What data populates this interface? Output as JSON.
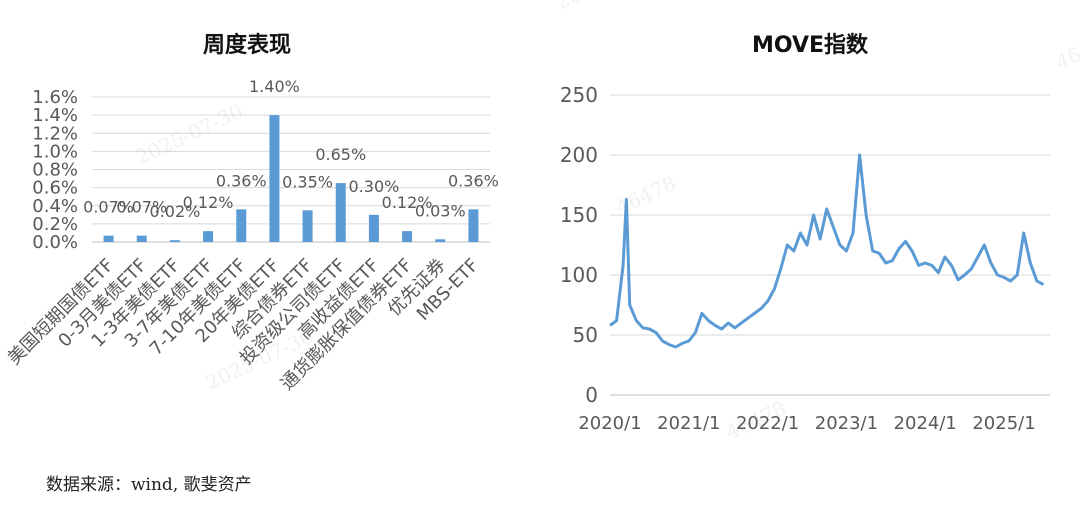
{
  "source_note": "数据来源：wind, 歌斐资产",
  "watermark": {
    "id_text": "46478",
    "date_text": "2025-07-30"
  },
  "chart_data": [
    {
      "type": "bar",
      "title": "周度表现",
      "xlabel": "",
      "ylabel": "",
      "ylim": [
        0,
        1.6
      ],
      "yticks": [
        "1.6%",
        "1.4%",
        "1.2%",
        "1.0%",
        "0.8%",
        "0.6%",
        "0.4%",
        "0.2%",
        "0.0%"
      ],
      "grid": true,
      "color": "#5B9BD5",
      "categories": [
        "美国短期国债ETF",
        "0-3月美债ETF",
        "1-3年美债ETF",
        "3-7年美债ETF",
        "7-10年美债ETF",
        "20年美债ETF",
        "综合债券ETF",
        "投资级公司债ETF",
        "高收益债ETF",
        "通货膨胀保值债券ETF",
        "优先证券",
        "MBS-ETF"
      ],
      "values": [
        0.07,
        0.07,
        0.02,
        0.12,
        0.36,
        1.4,
        0.35,
        0.65,
        0.3,
        0.12,
        0.03,
        0.36
      ],
      "data_labels": [
        "0.07%",
        "0.07%",
        "0.02%",
        "0.12%",
        "0.36%",
        "1.40%",
        "0.35%",
        "0.65%",
        "0.30%",
        "0.12%",
        "0.03%",
        "0.36%"
      ]
    },
    {
      "type": "line",
      "title": "MOVE指数",
      "xlabel": "",
      "ylabel": "",
      "ylim": [
        0,
        250
      ],
      "yticks": [
        "0",
        "50",
        "100",
        "150",
        "200",
        "250"
      ],
      "xticks": [
        "2020/1",
        "2021/1",
        "2022/1",
        "2023/1",
        "2024/1",
        "2025/1"
      ],
      "grid": true,
      "color": "#5B9BD5",
      "series": [
        {
          "x": [
            "2020/1",
            "2020/2",
            "2020/3",
            "2020/3",
            "2020/4",
            "2020/5",
            "2020/6",
            "2020/7",
            "2020/8",
            "2020/9",
            "2020/10",
            "2020/11",
            "2020/12",
            "2021/1",
            "2021/2",
            "2021/3",
            "2021/4",
            "2021/5",
            "2021/6",
            "2021/7",
            "2021/8",
            "2021/9",
            "2021/10",
            "2021/11",
            "2021/12",
            "2022/1",
            "2022/2",
            "2022/3",
            "2022/4",
            "2022/5",
            "2022/6",
            "2022/7",
            "2022/8",
            "2022/9",
            "2022/10",
            "2022/11",
            "2022/12",
            "2023/1",
            "2023/2",
            "2023/3",
            "2023/4",
            "2023/5",
            "2023/6",
            "2023/7",
            "2023/8",
            "2023/9",
            "2023/10",
            "2023/11",
            "2023/12",
            "2024/1",
            "2024/2",
            "2024/3",
            "2024/4",
            "2024/5",
            "2024/6",
            "2024/7",
            "2024/8",
            "2024/9",
            "2024/10",
            "2024/11",
            "2024/12",
            "2025/1",
            "2025/2",
            "2025/3",
            "2025/4",
            "2025/5",
            "2025/6",
            "2025/7"
          ],
          "values": [
            58,
            62,
            108,
            163,
            75,
            62,
            56,
            55,
            52,
            45,
            42,
            40,
            43,
            45,
            52,
            68,
            62,
            58,
            55,
            60,
            56,
            60,
            64,
            68,
            72,
            78,
            88,
            105,
            125,
            120,
            135,
            125,
            150,
            130,
            155,
            140,
            125,
            120,
            135,
            200,
            150,
            120,
            118,
            110,
            112,
            122,
            128,
            120,
            108,
            110,
            108,
            102,
            115,
            108,
            96,
            100,
            105,
            115,
            125,
            110,
            100,
            98,
            95,
            100,
            135,
            110,
            95,
            92
          ]
        }
      ]
    }
  ]
}
